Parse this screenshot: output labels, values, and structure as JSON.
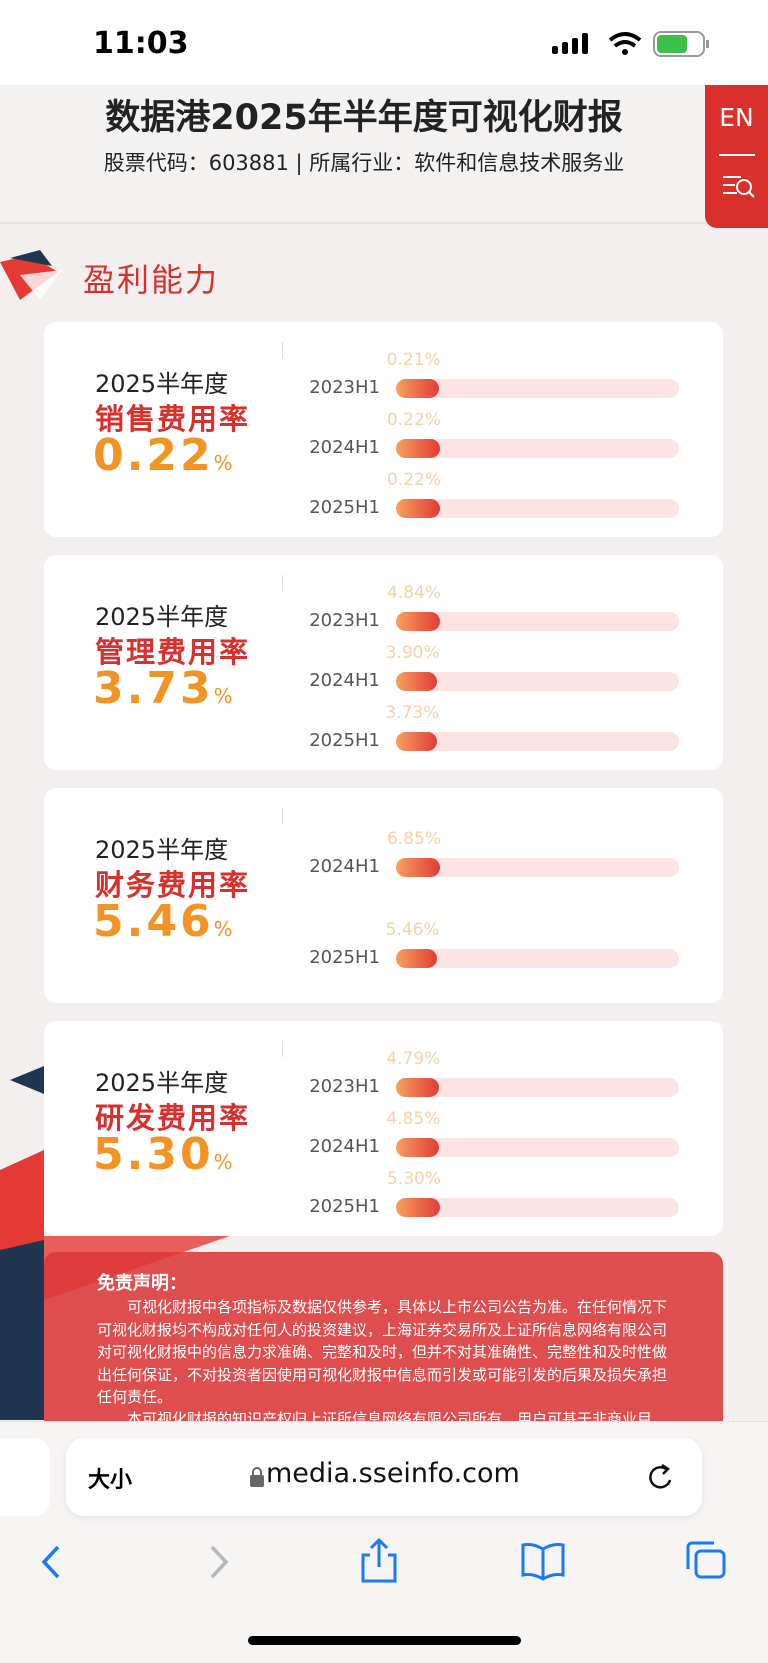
{
  "status_bar": {
    "time": "11:03"
  },
  "header": {
    "title": "数据港2025年半年度可视化财报",
    "subtitle": "股票代码：603881 | 所属行业：软件和信息技术服务业",
    "lang_button": "EN"
  },
  "section": {
    "title": "盈利能力"
  },
  "cards": [
    {
      "period": "2025半年度",
      "metric": "销售费用率",
      "value": "0.22",
      "unit": "%",
      "bars": {
        "categories": [
          "2023H1",
          "2024H1",
          "2025H1"
        ],
        "values": [
          0.21,
          0.22,
          0.22
        ],
        "value_labels": [
          "0.21%",
          "0.22%",
          "0.22%"
        ]
      }
    },
    {
      "period": "2025半年度",
      "metric": "管理费用率",
      "value": "3.73",
      "unit": "%",
      "bars": {
        "categories": [
          "2023H1",
          "2024H1",
          "2025H1"
        ],
        "values": [
          4.84,
          3.9,
          3.73
        ],
        "value_labels": [
          "4.84%",
          "3.90%",
          "3.73%"
        ]
      }
    },
    {
      "period": "2025半年度",
      "metric": "财务费用率",
      "value": "5.46",
      "unit": "%",
      "bars": {
        "categories": [
          "2024H1",
          "2025H1"
        ],
        "values": [
          6.85,
          5.46
        ],
        "value_labels": [
          "6.85%",
          "5.46%"
        ]
      }
    },
    {
      "period": "2025半年度",
      "metric": "研发费用率",
      "value": "5.30",
      "unit": "%",
      "bars": {
        "categories": [
          "2023H1",
          "2024H1",
          "2025H1"
        ],
        "values": [
          4.79,
          4.85,
          5.3
        ],
        "value_labels": [
          "4.79%",
          "4.85%",
          "5.30%"
        ]
      }
    }
  ],
  "disclaimer": {
    "title": "免责声明：",
    "paragraphs": [
      "可视化财报中各项指标及数据仅供参考，具体以上市公司公告为准。在任何情况下可视化财报均不构成对任何人的投资建议，上海证券交易所及上证所信息网络有限公司对可视化财报中的信息力求准确、完整和及时，但并不对其准确性、完整性和及时性做出任何保证，不对投资者因使用可视化财报中信息而引发或可能引发的后果及损失承担任何责任。",
      "本可视化财报的知识产权归上证所信息网络有限公司所有，用户可基于非商业目"
    ]
  },
  "browser": {
    "text_size": "大小",
    "url": "media.sseinfo.com"
  }
}
